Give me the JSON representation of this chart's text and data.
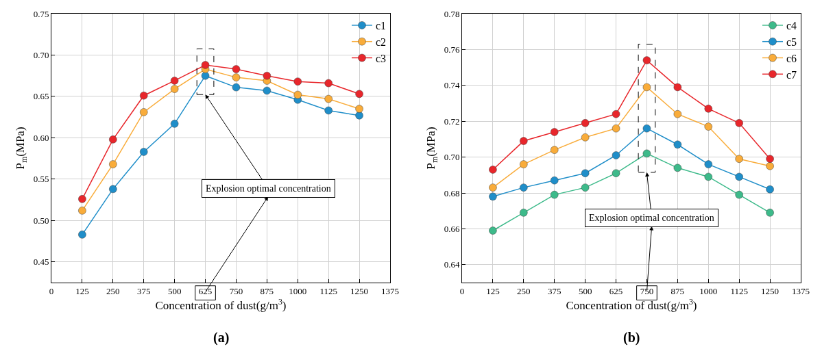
{
  "chart_data": [
    {
      "type": "line",
      "xlabel": "Concentration of dust(g/m$^{3}$)",
      "ylabel": "P$_{m}$(MPa)",
      "x": [
        125,
        250,
        375,
        500,
        625,
        750,
        875,
        1000,
        1125,
        1250
      ],
      "series": [
        {
          "name": "c1",
          "color": "#1f8ec9",
          "values": [
            0.483,
            0.538,
            0.583,
            0.617,
            0.675,
            0.661,
            0.657,
            0.646,
            0.633,
            0.627
          ]
        },
        {
          "name": "c2",
          "color": "#f9ac3a",
          "values": [
            0.512,
            0.568,
            0.631,
            0.659,
            0.683,
            0.673,
            0.669,
            0.652,
            0.647,
            0.635
          ]
        },
        {
          "name": "c3",
          "color": "#e8262b",
          "values": [
            0.526,
            0.598,
            0.651,
            0.669,
            0.688,
            0.683,
            0.675,
            0.668,
            0.666,
            0.653
          ]
        }
      ],
      "xlim": [
        0,
        1375
      ],
      "xticks": [
        0,
        125,
        250,
        375,
        500,
        625,
        750,
        875,
        1000,
        1125,
        1250,
        1375
      ],
      "ylim": [
        0.425,
        0.75
      ],
      "yticks": [
        0.45,
        {
          "value": 0.5,
          "label": "0.50"
        },
        0.55,
        {
          "value": 0.6,
          "label": "0.60"
        },
        0.65,
        {
          "value": 0.7,
          "label": "0.70"
        },
        0.75
      ],
      "annotations": [
        "Explosion optimal concentration",
        "(a)"
      ],
      "grid": true,
      "legend": "top right",
      "marker": "circle",
      "line_style": "solid"
    },
    {
      "type": "line",
      "xlabel": "Concentration of dust(g/m$^{3}$)",
      "ylabel": "P$_{m}$(MPa)",
      "x": [
        125,
        250,
        375,
        500,
        625,
        750,
        875,
        1000,
        1125,
        1250
      ],
      "series": [
        {
          "name": "c4",
          "color": "#3dba8a",
          "values": [
            0.659,
            0.669,
            0.679,
            0.683,
            0.691,
            0.702,
            0.694,
            0.689,
            0.679,
            0.669
          ]
        },
        {
          "name": "c5",
          "color": "#1f8ec9",
          "values": [
            0.678,
            0.683,
            0.687,
            0.691,
            0.701,
            0.716,
            0.707,
            0.696,
            0.689,
            0.682
          ]
        },
        {
          "name": "c6",
          "color": "#f9ac3a",
          "values": [
            0.683,
            0.696,
            0.704,
            0.711,
            0.716,
            0.739,
            0.724,
            0.717,
            0.699,
            0.695
          ]
        },
        {
          "name": "c7",
          "color": "#e8262b",
          "values": [
            0.693,
            0.709,
            0.714,
            0.719,
            0.724,
            0.754,
            0.739,
            0.727,
            0.719,
            0.699
          ]
        }
      ],
      "xlim": [
        0,
        1375
      ],
      "xticks": [
        0,
        125,
        250,
        375,
        500,
        625,
        750,
        875,
        1000,
        1125,
        1250,
        1375
      ],
      "ylim": [
        0.63,
        0.78
      ],
      "yticks": [
        0.64,
        0.66,
        0.68,
        {
          "value": 0.7,
          "label": "0.70"
        },
        0.72,
        0.74,
        0.76,
        0.78
      ],
      "annotations": [
        "Explosion optimal concentration",
        "(b)"
      ],
      "grid": true,
      "legend": "top right",
      "marker": "circle",
      "line_style": "solid"
    }
  ]
}
